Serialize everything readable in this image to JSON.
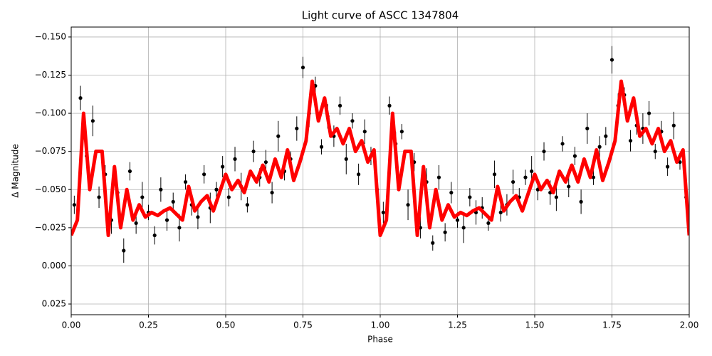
{
  "chart_data": {
    "type": "scatter",
    "title": "Light curve of ASCC 1347804",
    "xlabel": "Phase",
    "ylabel": "Δ Magnitude",
    "xlim": [
      0,
      2
    ],
    "ylim": [
      0.032,
      -0.1565
    ],
    "grid": true,
    "xticks": [
      {
        "value": 0,
        "label": "0.00"
      },
      0.25,
      {
        "value": 0.5,
        "label": "0.50"
      },
      0.75,
      {
        "value": 1,
        "label": "1.00"
      },
      1.25,
      {
        "value": 1.5,
        "label": "1.50"
      },
      1.75,
      {
        "value": 2,
        "label": "2.00"
      }
    ],
    "yticks": [
      {
        "value": -0.15,
        "label": "−0.150"
      },
      {
        "value": -0.125,
        "label": "−0.125"
      },
      {
        "value": -0.1,
        "label": "−0.100"
      },
      {
        "value": -0.075,
        "label": "−0.075"
      },
      {
        "value": -0.05,
        "label": "−0.050"
      },
      {
        "value": -0.025,
        "label": "−0.025"
      },
      {
        "value": 0,
        "label": "0.000"
      },
      0.025
    ],
    "points": {
      "color": "#000000",
      "x": [
        0.01,
        0.03,
        0.05,
        0.07,
        0.09,
        0.11,
        0.13,
        0.15,
        0.17,
        0.19,
        0.21,
        0.23,
        0.25,
        0.27,
        0.29,
        0.31,
        0.33,
        0.35,
        0.37,
        0.39,
        0.41,
        0.43,
        0.45,
        0.47,
        0.49,
        0.51,
        0.53,
        0.55,
        0.57,
        0.59,
        0.61,
        0.63,
        0.65,
        0.67,
        0.69,
        0.71,
        0.73,
        0.75,
        0.77,
        0.79,
        0.81,
        0.83,
        0.85,
        0.87,
        0.89,
        0.91,
        0.93,
        0.95,
        0.97,
        0.99,
        1.01,
        1.03,
        1.05,
        1.07,
        1.09,
        1.11,
        1.13,
        1.15,
        1.17,
        1.19,
        1.21,
        1.23,
        1.25,
        1.27,
        1.29,
        1.31,
        1.33,
        1.35,
        1.37,
        1.39,
        1.41,
        1.43,
        1.45,
        1.47,
        1.49,
        1.51,
        1.53,
        1.55,
        1.57,
        1.59,
        1.61,
        1.63,
        1.65,
        1.67,
        1.69,
        1.71,
        1.73,
        1.75,
        1.77,
        1.79,
        1.81,
        1.83,
        1.85,
        1.87,
        1.89,
        1.91,
        1.93,
        1.95,
        1.97,
        1.99
      ],
      "values": [
        -0.04,
        -0.11,
        -0.072,
        -0.095,
        -0.045,
        -0.06,
        -0.03,
        -0.048,
        -0.01,
        -0.062,
        -0.028,
        -0.045,
        -0.035,
        -0.02,
        -0.05,
        -0.03,
        -0.042,
        -0.025,
        -0.055,
        -0.04,
        -0.032,
        -0.06,
        -0.038,
        -0.05,
        -0.065,
        -0.045,
        -0.07,
        -0.052,
        -0.04,
        -0.075,
        -0.058,
        -0.068,
        -0.048,
        -0.085,
        -0.062,
        -0.07,
        -0.09,
        -0.13,
        -0.1,
        -0.118,
        -0.078,
        -0.098,
        -0.085,
        -0.105,
        -0.07,
        -0.095,
        -0.06,
        -0.088,
        -0.072,
        -0.05,
        -0.035,
        -0.105,
        -0.08,
        -0.088,
        -0.04,
        -0.068,
        -0.025,
        -0.055,
        -0.015,
        -0.058,
        -0.022,
        -0.048,
        -0.03,
        -0.025,
        -0.045,
        -0.035,
        -0.038,
        -0.028,
        -0.06,
        -0.035,
        -0.04,
        -0.055,
        -0.045,
        -0.058,
        -0.062,
        -0.05,
        -0.075,
        -0.048,
        -0.045,
        -0.08,
        -0.052,
        -0.072,
        -0.042,
        -0.09,
        -0.058,
        -0.078,
        -0.085,
        -0.135,
        -0.105,
        -0.112,
        -0.082,
        -0.092,
        -0.09,
        -0.1,
        -0.075,
        -0.088,
        -0.065,
        -0.092,
        -0.068,
        -0.045
      ],
      "errors": [
        0.006,
        0.008,
        0.005,
        0.01,
        0.007,
        0.006,
        0.009,
        0.005,
        0.008,
        0.006,
        0.007,
        0.01,
        0.005,
        0.006,
        0.008,
        0.007,
        0.006,
        0.009,
        0.005,
        0.007,
        0.008,
        0.006,
        0.01,
        0.005,
        0.007,
        0.006,
        0.008,
        0.009,
        0.005,
        0.007,
        0.006,
        0.008,
        0.007,
        0.01,
        0.006,
        0.005,
        0.008,
        0.007,
        0.009,
        0.006,
        0.005,
        0.008,
        0.007,
        0.006,
        0.01,
        0.005,
        0.007,
        0.008,
        0.006,
        0.009,
        0.007,
        0.006,
        0.008,
        0.005,
        0.01,
        0.006,
        0.007,
        0.009,
        0.005,
        0.008,
        0.006,
        0.007,
        0.005,
        0.01,
        0.006,
        0.008,
        0.007,
        0.005,
        0.009,
        0.006,
        0.007,
        0.008,
        0.006,
        0.005,
        0.01,
        0.007,
        0.006,
        0.008,
        0.009,
        0.005,
        0.007,
        0.006,
        0.008,
        0.01,
        0.005,
        0.007,
        0.006,
        0.009,
        0.008,
        0.005,
        0.007,
        0.006,
        0.01,
        0.008,
        0.005,
        0.007,
        0.006,
        0.009,
        0.005,
        0.008
      ]
    },
    "model": {
      "color": "#ff0000",
      "x": [
        0.0,
        0.02,
        0.04,
        0.06,
        0.08,
        0.1,
        0.12,
        0.14,
        0.16,
        0.18,
        0.2,
        0.22,
        0.24,
        0.26,
        0.28,
        0.3,
        0.32,
        0.34,
        0.36,
        0.38,
        0.4,
        0.42,
        0.44,
        0.46,
        0.48,
        0.5,
        0.52,
        0.54,
        0.56,
        0.58,
        0.6,
        0.62,
        0.64,
        0.66,
        0.68,
        0.7,
        0.72,
        0.74,
        0.76,
        0.78,
        0.8,
        0.82,
        0.84,
        0.86,
        0.88,
        0.9,
        0.92,
        0.94,
        0.96,
        0.98,
        1.0,
        1.02,
        1.04,
        1.06,
        1.08,
        1.1,
        1.12,
        1.14,
        1.16,
        1.18,
        1.2,
        1.22,
        1.24,
        1.26,
        1.28,
        1.3,
        1.32,
        1.34,
        1.36,
        1.38,
        1.4,
        1.42,
        1.44,
        1.46,
        1.48,
        1.5,
        1.52,
        1.54,
        1.56,
        1.58,
        1.6,
        1.62,
        1.64,
        1.66,
        1.68,
        1.7,
        1.72,
        1.74,
        1.76,
        1.78,
        1.8,
        1.82,
        1.84,
        1.86,
        1.88,
        1.9,
        1.92,
        1.94,
        1.96,
        1.98,
        2.0
      ],
      "values": [
        -0.02,
        -0.03,
        -0.1,
        -0.05,
        -0.075,
        -0.075,
        -0.02,
        -0.065,
        -0.025,
        -0.05,
        -0.03,
        -0.04,
        -0.032,
        -0.035,
        -0.033,
        -0.036,
        -0.038,
        -0.034,
        -0.03,
        -0.052,
        -0.036,
        -0.042,
        -0.046,
        -0.036,
        -0.048,
        -0.06,
        -0.05,
        -0.056,
        -0.048,
        -0.062,
        -0.055,
        -0.066,
        -0.055,
        -0.07,
        -0.058,
        -0.076,
        -0.056,
        -0.068,
        -0.082,
        -0.121,
        -0.095,
        -0.11,
        -0.085,
        -0.09,
        -0.08,
        -0.09,
        -0.075,
        -0.082,
        -0.068,
        -0.076,
        -0.02,
        -0.03,
        -0.1,
        -0.05,
        -0.075,
        -0.075,
        -0.02,
        -0.065,
        -0.025,
        -0.05,
        -0.03,
        -0.04,
        -0.032,
        -0.035,
        -0.033,
        -0.036,
        -0.038,
        -0.034,
        -0.03,
        -0.052,
        -0.036,
        -0.042,
        -0.046,
        -0.036,
        -0.048,
        -0.06,
        -0.05,
        -0.056,
        -0.048,
        -0.062,
        -0.055,
        -0.066,
        -0.055,
        -0.07,
        -0.058,
        -0.076,
        -0.056,
        -0.068,
        -0.082,
        -0.121,
        -0.095,
        -0.11,
        -0.085,
        -0.09,
        -0.08,
        -0.09,
        -0.075,
        -0.082,
        -0.068,
        -0.076,
        -0.02
      ]
    }
  }
}
